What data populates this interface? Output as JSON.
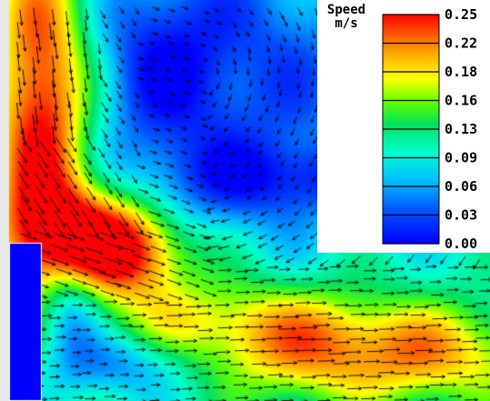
{
  "chart_data": {
    "type": "heatmap",
    "title": "",
    "legend": {
      "title_line1": "Speed",
      "title_line2": "m/s",
      "placement": "top-right",
      "ticks": [
        "0.25",
        "0.22",
        "0.18",
        "0.16",
        "0.13",
        "0.09",
        "0.06",
        "0.03",
        "0.00"
      ],
      "range": [
        0.0,
        0.25
      ],
      "colormap": [
        "#0000ff",
        "#00a0ff",
        "#00ffff",
        "#00ff60",
        "#80ff00",
        "#ffff00",
        "#ffb000",
        "#ff6000",
        "#ff0000"
      ]
    },
    "vectors": "black arrows showing flow direction over the speed field",
    "inlet_color": "#0000ff"
  }
}
